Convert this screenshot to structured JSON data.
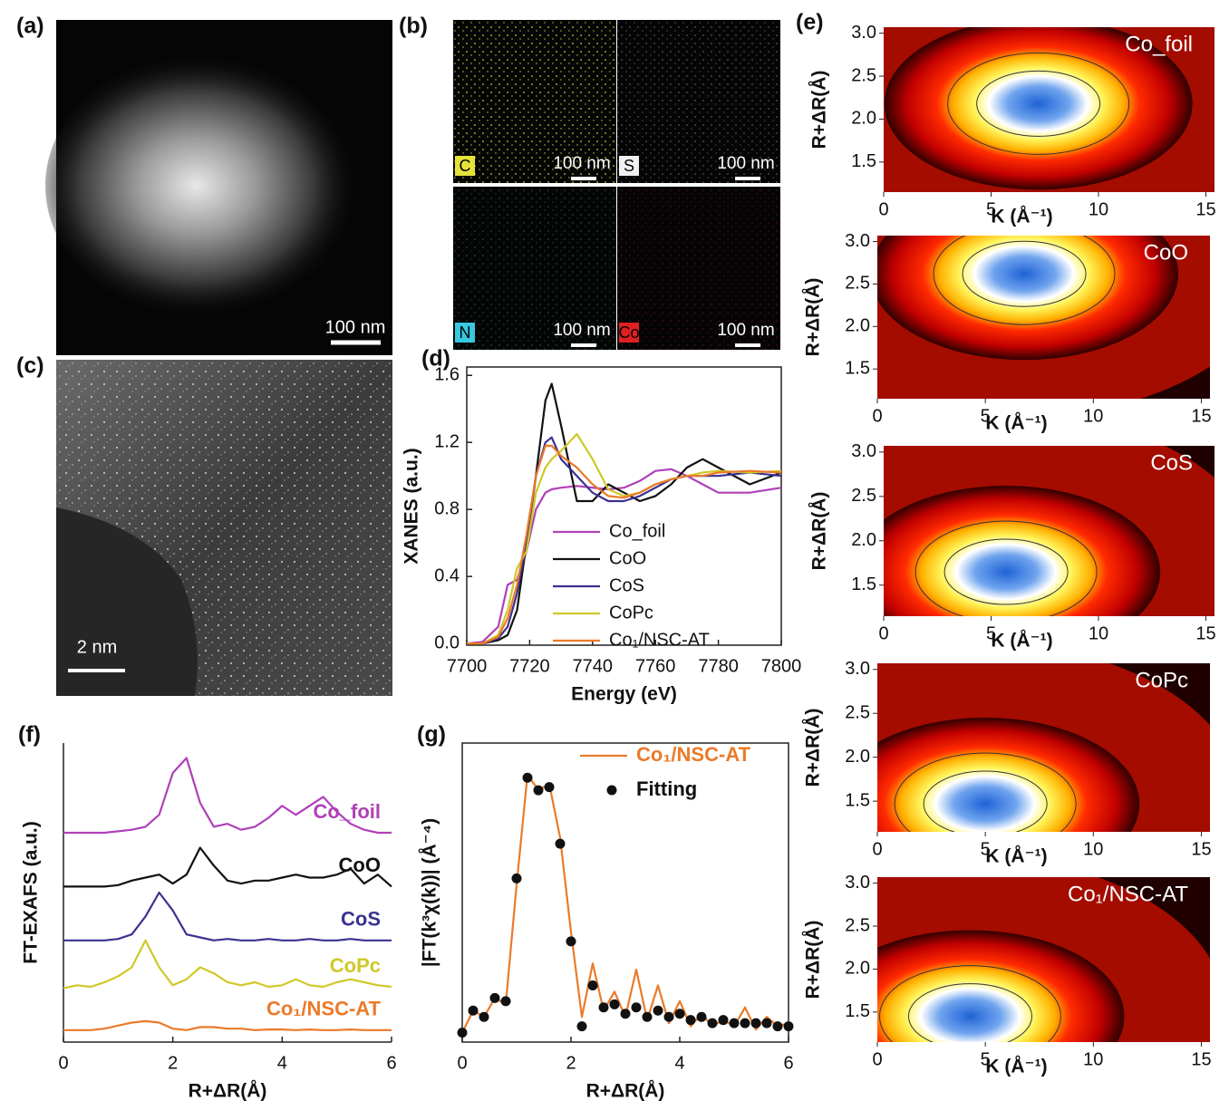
{
  "images": [
    {
      "label": "(a)",
      "scale_bar": "100 nm"
    },
    {
      "label": "(b)",
      "maps": [
        {
          "element": "C",
          "color": "#e6e23a",
          "scale_bar": "100 nm"
        },
        {
          "element": "S",
          "color": "#f0f0f0",
          "scale_bar": "100 nm"
        },
        {
          "element": "N",
          "color": "#38c8e0",
          "scale_bar": "100 nm"
        },
        {
          "element": "Co",
          "color": "#e02020",
          "scale_bar": "100 nm"
        }
      ]
    },
    {
      "label": "(c)",
      "scale_bar": "2 nm"
    }
  ],
  "chart_data": [
    {
      "type": "line",
      "label": "(d)",
      "xlabel": "Energy (eV)",
      "ylabel": "XANES (a.u.)",
      "legend": "lower right",
      "xlim": [
        7700,
        7800
      ],
      "xticks": [
        7700,
        7720,
        7740,
        7760,
        7780,
        7800
      ],
      "ylim": [
        -0.01,
        1.65
      ],
      "yticks": [
        {
          "value": 0,
          "label": "0.0"
        },
        0.4,
        0.8,
        1.2,
        1.6
      ],
      "x": [
        7700,
        7705,
        7710,
        7713,
        7716,
        7719,
        7722,
        7725,
        7727,
        7730,
        7735,
        7740,
        7745,
        7750,
        7755,
        7760,
        7765,
        7770,
        7775,
        7780,
        7790,
        7800
      ],
      "series": [
        {
          "name": "Co_foil",
          "color": "#b040b8",
          "values": [
            0,
            0.01,
            0.1,
            0.35,
            0.38,
            0.55,
            0.8,
            0.9,
            0.92,
            0.93,
            0.94,
            0.93,
            0.92,
            0.93,
            0.97,
            1.03,
            1.04,
            1.0,
            0.95,
            0.9,
            0.9,
            0.93
          ]
        },
        {
          "name": "CoO",
          "color": "#111111",
          "values": [
            0,
            0,
            0.02,
            0.05,
            0.2,
            0.6,
            1.0,
            1.45,
            1.55,
            1.3,
            0.85,
            0.85,
            0.95,
            0.9,
            0.85,
            0.88,
            0.95,
            1.05,
            1.1,
            1.05,
            0.95,
            1.02
          ]
        },
        {
          "name": "CoS",
          "color": "#3a3290",
          "values": [
            0,
            0,
            0.03,
            0.1,
            0.3,
            0.6,
            1.0,
            1.2,
            1.23,
            1.1,
            1.0,
            0.9,
            0.85,
            0.85,
            0.88,
            0.93,
            0.98,
            1.0,
            1.0,
            1.0,
            1.02,
            1.0
          ]
        },
        {
          "name": "CoPc",
          "color": "#d0c828",
          "values": [
            0,
            0,
            0.05,
            0.2,
            0.45,
            0.55,
            0.9,
            1.05,
            1.1,
            1.15,
            1.25,
            1.1,
            0.92,
            0.88,
            0.9,
            0.95,
            0.98,
            1.0,
            1.02,
            1.03,
            1.02,
            1.03
          ]
        },
        {
          "name": "Co₁/NSC-AT",
          "color": "#ea7a2a",
          "values": [
            0,
            0,
            0.04,
            0.15,
            0.35,
            0.65,
            1.0,
            1.18,
            1.18,
            1.12,
            1.05,
            0.95,
            0.88,
            0.87,
            0.9,
            0.95,
            0.98,
            1.0,
            1.0,
            1.02,
            1.03,
            1.02
          ]
        }
      ]
    },
    {
      "type": "contour",
      "label": "(e)",
      "title": "Co_foil",
      "xlabel": "K (Å⁻¹)",
      "ylabel": "R+ΔR(Å)",
      "xlim": [
        0,
        15.4
      ],
      "xticks": [
        0,
        5,
        10,
        15
      ],
      "ylim": [
        1.15,
        3.07
      ],
      "yticks": [
        1.5,
        {
          "value": 2,
          "label": "2.0"
        },
        2.5,
        {
          "value": 3,
          "label": "3.0"
        }
      ],
      "peak": {
        "k": 7.2,
        "r": 2.18
      }
    },
    {
      "type": "contour",
      "title": "CoO",
      "xlabel": "K (Å⁻¹)",
      "ylabel": "R+ΔR(Å)",
      "xlim": [
        0,
        15.4
      ],
      "xticks": [
        0,
        5,
        10,
        15
      ],
      "ylim": [
        1.15,
        3.07
      ],
      "yticks": [
        1.5,
        {
          "value": 2,
          "label": "2.0"
        },
        2.5,
        {
          "value": 3,
          "label": "3.0"
        }
      ],
      "peak": {
        "k": 6.8,
        "r": 2.62
      }
    },
    {
      "type": "contour",
      "title": "CoS",
      "xlabel": "K (Å⁻¹)",
      "ylabel": "R+ΔR(Å)",
      "xlim": [
        0,
        15.4
      ],
      "xticks": [
        0,
        5,
        10,
        15
      ],
      "ylim": [
        1.15,
        3.07
      ],
      "yticks": [
        1.5,
        {
          "value": 2,
          "label": "2.0"
        },
        2.5,
        {
          "value": 3,
          "label": "3.0"
        }
      ],
      "peak": {
        "k": 5.7,
        "r": 1.65
      }
    },
    {
      "type": "contour",
      "title": "CoPc",
      "xlabel": "K (Å⁻¹)",
      "ylabel": "R+ΔR(Å)",
      "xlim": [
        0,
        15.4
      ],
      "xticks": [
        0,
        5,
        10,
        15
      ],
      "ylim": [
        1.15,
        3.07
      ],
      "yticks": [
        1.5,
        {
          "value": 2,
          "label": "2.0"
        },
        2.5,
        {
          "value": 3,
          "label": "3.0"
        }
      ],
      "peak": {
        "k": 5.0,
        "r": 1.47
      }
    },
    {
      "type": "contour",
      "title": "Co₁/NSC-AT",
      "xlabel": "K (Å⁻¹)",
      "ylabel": "R+ΔR(Å)",
      "xlim": [
        0,
        15.4
      ],
      "xticks": [
        0,
        5,
        10,
        15
      ],
      "ylim": [
        1.15,
        3.07
      ],
      "yticks": [
        1.5,
        {
          "value": 2,
          "label": "2.0"
        },
        2.5,
        {
          "value": 3,
          "label": "3.0"
        }
      ],
      "peak": {
        "k": 4.3,
        "r": 1.45
      }
    },
    {
      "type": "line",
      "label": "(f)",
      "xlabel": "R+ΔR(Å)",
      "ylabel": "FT-EXAFS (a.u.)",
      "legend": "inline",
      "xlim": [
        0,
        6
      ],
      "xticks": [
        0,
        2,
        4,
        6
      ],
      "ylim": [
        0,
        10
      ],
      "x": [
        0,
        0.25,
        0.5,
        0.75,
        1,
        1.25,
        1.5,
        1.75,
        2,
        2.25,
        2.5,
        2.75,
        3,
        3.25,
        3.5,
        3.75,
        4,
        4.25,
        4.5,
        4.75,
        5,
        5.25,
        5.5,
        5.75,
        6
      ],
      "series": [
        {
          "name": "Co_foil",
          "color": "#b040b8",
          "values": [
            7.0,
            7.0,
            7.0,
            7.0,
            7.05,
            7.1,
            7.2,
            7.6,
            9.0,
            9.5,
            8.0,
            7.2,
            7.3,
            7.1,
            7.2,
            7.5,
            7.9,
            7.6,
            7.9,
            8.2,
            7.7,
            7.3,
            7.1,
            7.0,
            7.0
          ]
        },
        {
          "name": "CoO",
          "color": "#111111",
          "values": [
            5.2,
            5.2,
            5.2,
            5.2,
            5.25,
            5.4,
            5.5,
            5.6,
            5.3,
            5.6,
            6.5,
            5.9,
            5.4,
            5.3,
            5.4,
            5.4,
            5.5,
            5.6,
            5.5,
            5.5,
            5.6,
            5.8,
            5.3,
            5.6,
            5.2
          ]
        },
        {
          "name": "CoS",
          "color": "#3a3290",
          "values": [
            3.4,
            3.4,
            3.4,
            3.4,
            3.45,
            3.6,
            4.2,
            5.0,
            4.4,
            3.6,
            3.5,
            3.4,
            3.45,
            3.4,
            3.4,
            3.45,
            3.4,
            3.4,
            3.45,
            3.4,
            3.4,
            3.45,
            3.4,
            3.4,
            3.4
          ]
        },
        {
          "name": "CoPc",
          "color": "#d0c828",
          "values": [
            1.8,
            1.9,
            1.85,
            2.0,
            2.2,
            2.5,
            3.4,
            2.5,
            1.9,
            2.1,
            2.5,
            2.3,
            2.0,
            1.9,
            2.0,
            1.85,
            1.9,
            2.1,
            1.9,
            1.85,
            2.0,
            2.1,
            2.0,
            1.9,
            1.85
          ]
        },
        {
          "name": "Co₁/NSC-AT",
          "color": "#ea7a2a",
          "values": [
            0.4,
            0.4,
            0.4,
            0.45,
            0.55,
            0.65,
            0.7,
            0.65,
            0.45,
            0.4,
            0.5,
            0.5,
            0.45,
            0.45,
            0.4,
            0.42,
            0.42,
            0.4,
            0.42,
            0.4,
            0.4,
            0.42,
            0.4,
            0.4,
            0.4
          ]
        }
      ]
    },
    {
      "type": "line",
      "label": "(g)",
      "xlabel": "R+ΔR(Å)",
      "ylabel": "|FT(k³χ(k))| (Å⁻⁴)",
      "legend": "upper right",
      "xlim": [
        0,
        6
      ],
      "xticks": [
        0,
        2,
        4,
        6
      ],
      "ylim": [
        0,
        9.5
      ],
      "x": [
        0,
        0.2,
        0.4,
        0.6,
        0.8,
        1.0,
        1.2,
        1.4,
        1.6,
        1.8,
        2.0,
        2.2,
        2.4,
        2.6,
        2.8,
        3.0,
        3.2,
        3.4,
        3.6,
        3.8,
        4.0,
        4.2,
        4.4,
        4.6,
        4.8,
        5.0,
        5.2,
        5.4,
        5.6,
        5.8,
        6.0
      ],
      "series": [
        {
          "name": "Co₁/NSC-AT",
          "color": "#ea7a2a",
          "values": [
            0.3,
            1.0,
            0.8,
            1.4,
            1.2,
            5.0,
            8.5,
            8.0,
            8.2,
            6.5,
            3.5,
            0.8,
            2.5,
            1.0,
            1.6,
            0.8,
            2.3,
            0.7,
            1.8,
            0.6,
            1.3,
            0.5,
            0.9,
            0.5,
            0.7,
            0.5,
            1.1,
            0.4,
            0.8,
            0.5,
            0.6
          ]
        },
        {
          "name": "Fitting",
          "color": "#111111",
          "style": "markers",
          "values": [
            0.3,
            1.0,
            0.8,
            1.4,
            1.3,
            5.2,
            8.4,
            8.0,
            8.1,
            6.3,
            3.2,
            0.5,
            1.8,
            1.1,
            1.2,
            0.9,
            1.1,
            0.8,
            1.0,
            0.8,
            0.9,
            0.7,
            0.8,
            0.6,
            0.7,
            0.6,
            0.6,
            0.6,
            0.6,
            0.5,
            0.5
          ]
        }
      ]
    }
  ]
}
